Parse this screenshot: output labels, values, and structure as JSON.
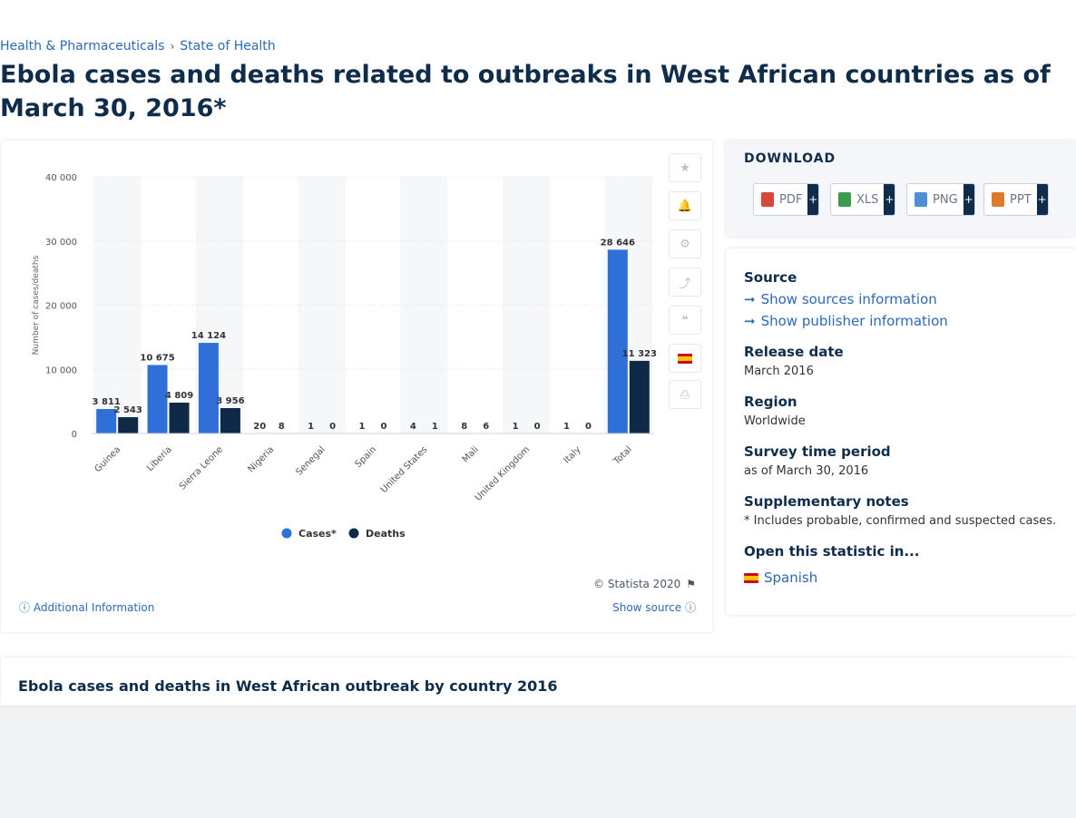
{
  "breadcrumb": [
    "Health & Pharmaceuticals",
    "State of Health"
  ],
  "breadcrumb_sep": "›",
  "title": "Ebola cases and deaths related to outbreaks in West African countries as of March 30, 2016*",
  "colors": {
    "cases": "#2f6fd8",
    "deaths": "#0f2a46",
    "accent": "#2c6ab5"
  },
  "chart_data": {
    "type": "bar",
    "categories": [
      "Guinea",
      "Liberia",
      "Sierra Leone",
      "Nigeria",
      "Senegal",
      "Spain",
      "United States",
      "Mali",
      "United Kingdom",
      "Italy",
      "Total"
    ],
    "series": [
      {
        "name": "Cases*",
        "values": [
          3811,
          10675,
          14124,
          20,
          1,
          1,
          4,
          8,
          1,
          1,
          28646
        ],
        "labels": [
          "3 811",
          "10 675",
          "14 124",
          "20",
          "1",
          "1",
          "4",
          "8",
          "1",
          "1",
          "28 646"
        ]
      },
      {
        "name": "Deaths",
        "values": [
          2543,
          4809,
          3956,
          8,
          0,
          0,
          1,
          6,
          0,
          0,
          11323
        ],
        "labels": [
          "2 543",
          "4 809",
          "3 956",
          "8",
          "0",
          "0",
          "1",
          "6",
          "0",
          "0",
          "11 323"
        ]
      }
    ],
    "ylabel": "Number of cases/deaths",
    "ylim": [
      0,
      40000
    ],
    "yticks": [
      0,
      10000,
      20000,
      30000,
      40000
    ],
    "ytick_labels": [
      "0",
      "10 000",
      "20 000",
      "30 000",
      "40 000"
    ],
    "grid": true,
    "legend": "bottom"
  },
  "tools": [
    "star-icon",
    "bell-icon",
    "gear-icon",
    "share-icon",
    "quote-icon",
    "flag-icon",
    "print-icon"
  ],
  "footer": {
    "additional": "Additional Information",
    "copyright": "© Statista 2020",
    "show_source": "Show source"
  },
  "download": {
    "title": "DOWNLOAD",
    "buttons": [
      {
        "label": "PDF",
        "color": "#d9463b"
      },
      {
        "label": "XLS",
        "color": "#3b9a4c"
      },
      {
        "label": "PNG",
        "color": "#4f8fd6"
      },
      {
        "label": "PPT",
        "color": "#e07a2b"
      }
    ],
    "plus": "+"
  },
  "info": {
    "source_label": "Source",
    "show_sources": "Show sources information",
    "show_publisher": "Show publisher information",
    "release_label": "Release date",
    "release_value": "March 2016",
    "region_label": "Region",
    "region_value": "Worldwide",
    "survey_label": "Survey time period",
    "survey_value": "as of March 30, 2016",
    "notes_label": "Supplementary notes",
    "notes_value": "* Includes probable, confirmed and suspected cases.",
    "open_label": "Open this statistic in...",
    "open_lang": "Spanish"
  },
  "related_title": "Ebola cases and deaths in West African outbreak by country 2016"
}
